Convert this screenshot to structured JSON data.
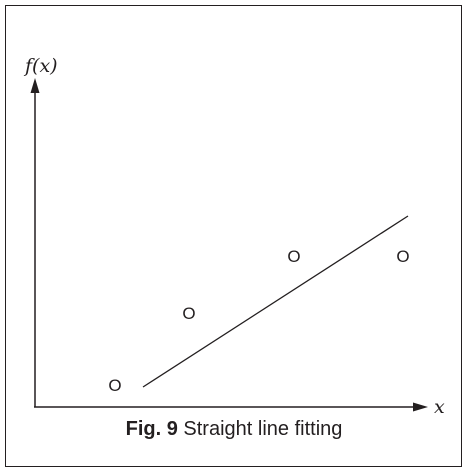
{
  "figure": {
    "y_axis_label": "f(x)",
    "x_axis_label": "x",
    "point_marker": "O",
    "caption_label": "Fig. 9",
    "caption_text": "Straight line fitting"
  },
  "colors": {
    "ink": "#231f20",
    "background": "#ffffff"
  }
}
